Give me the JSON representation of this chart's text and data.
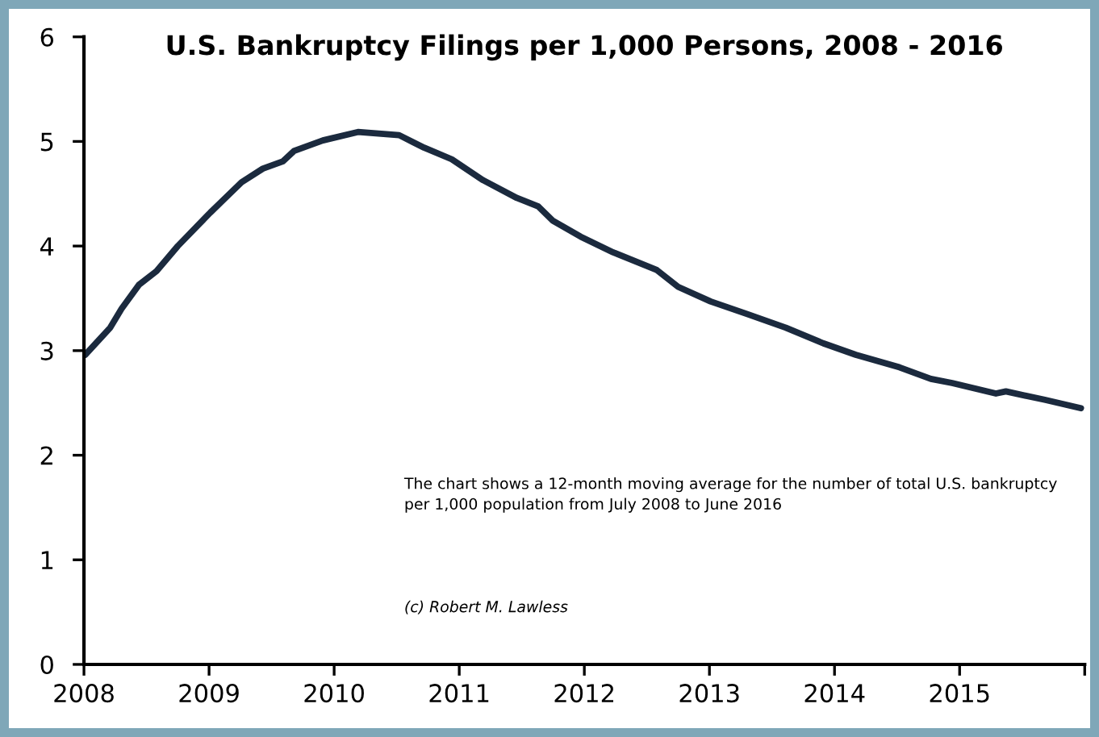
{
  "chart_data": {
    "type": "line",
    "title": "U.S. Bankruptcy Filings per 1,000 Persons, 2008 - 2016",
    "annotations": [
      "The chart shows a 12-month moving average for the number of total U.S. bankruptcy\nper 1,000 population from July 2008 to June 2016",
      "(c) Robert M. Lawless"
    ],
    "series": [
      {
        "color": "#1b2a3e",
        "x": [
          2008.01,
          2008.21,
          2008.3,
          2008.44,
          2008.58,
          2008.75,
          2009.01,
          2009.26,
          2009.43,
          2009.59,
          2009.68,
          2009.91,
          2010.19,
          2010.52,
          2010.72,
          2010.94,
          2011.19,
          2011.46,
          2011.63,
          2011.75,
          2011.97,
          2012.23,
          2012.58,
          2012.75,
          2013.01,
          2013.3,
          2013.61,
          2013.91,
          2014.17,
          2014.52,
          2014.77,
          2014.94,
          2015.29,
          2015.37,
          2015.68,
          2015.97
        ],
        "values": [
          2.96,
          3.22,
          3.4,
          3.63,
          3.76,
          4.0,
          4.32,
          4.61,
          4.74,
          4.81,
          4.91,
          5.01,
          5.09,
          5.06,
          4.94,
          4.83,
          4.63,
          4.46,
          4.38,
          4.24,
          4.09,
          3.94,
          3.77,
          3.61,
          3.47,
          3.35,
          3.22,
          3.07,
          2.96,
          2.84,
          2.73,
          2.69,
          2.59,
          2.61,
          2.53,
          2.45
        ]
      }
    ],
    "xlim": [
      2008,
      2016
    ],
    "ylim": [
      0,
      6
    ],
    "xticks": [
      2008,
      2009,
      2010,
      2011,
      2012,
      2013,
      2014,
      2015,
      {
        "value": 2016,
        "label": null
      }
    ],
    "yticks": [
      0,
      1,
      2,
      3,
      4,
      5,
      6
    ],
    "grid": false,
    "legend": false,
    "marker": "none",
    "line_style": "solid"
  }
}
